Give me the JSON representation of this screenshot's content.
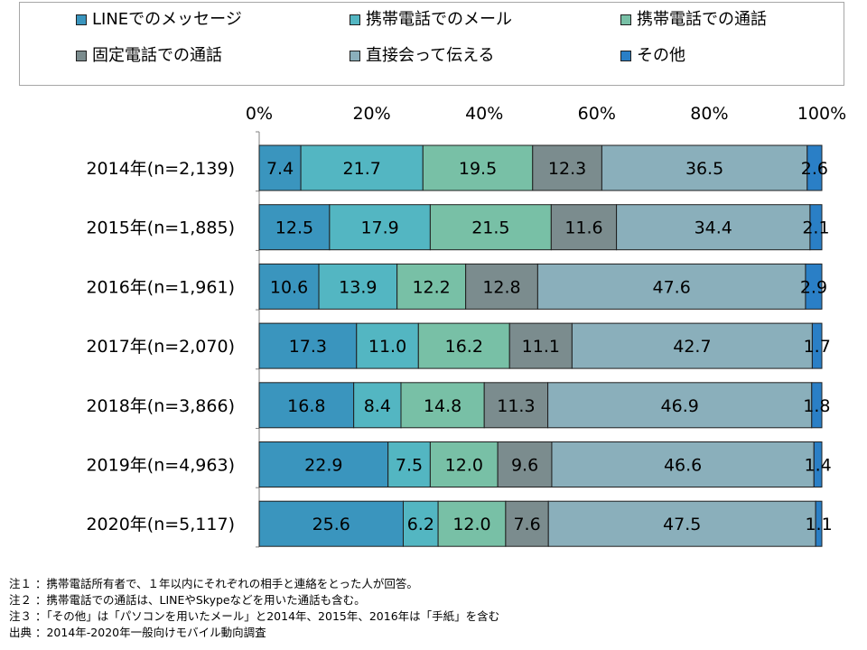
{
  "legend": [
    {
      "label": "LINEでのメッセージ",
      "color": "#3a95be",
      "icon": "square-swatch"
    },
    {
      "label": "携帯電話でのメール",
      "color": "#53b6c2",
      "icon": "square-swatch"
    },
    {
      "label": "携帯電話での通話",
      "color": "#78c0a6",
      "icon": "square-swatch"
    },
    {
      "label": "固定電話での通話",
      "color": "#7b8c8e",
      "icon": "square-swatch"
    },
    {
      "label": "直接会って伝える",
      "color": "#8aafbb",
      "icon": "square-swatch"
    },
    {
      "label": "その他",
      "color": "#2a7fc6",
      "icon": "square-swatch"
    }
  ],
  "chart_data": {
    "type": "bar",
    "orientation": "horizontal",
    "stacked": true,
    "percent": true,
    "categories": [
      "2014年(n=2,139)",
      "2015年(n=1,885)",
      "2016年(n=1,961)",
      "2017年(n=2,070)",
      "2018年(n=3,866)",
      "2019年(n=4,963)",
      "2020年(n=5,117)"
    ],
    "x_ticks": [
      "0%",
      "20%",
      "40%",
      "60%",
      "80%",
      "100%"
    ],
    "xlim": [
      0,
      100
    ],
    "axis_position": "top",
    "legend_position": "top",
    "grid": false,
    "series": [
      {
        "name": "LINEでのメッセージ",
        "color": "#3a95be",
        "values": [
          7.4,
          12.5,
          10.6,
          17.3,
          16.8,
          22.9,
          25.6
        ]
      },
      {
        "name": "携帯電話でのメール",
        "color": "#53b6c2",
        "values": [
          21.7,
          17.9,
          13.9,
          11.0,
          8.4,
          7.5,
          6.2
        ]
      },
      {
        "name": "携帯電話での通話",
        "color": "#78c0a6",
        "values": [
          19.5,
          21.5,
          12.2,
          16.2,
          14.8,
          12.0,
          12.0
        ]
      },
      {
        "name": "固定電話での通話",
        "color": "#7b8c8e",
        "values": [
          12.3,
          11.6,
          12.8,
          11.1,
          11.3,
          9.6,
          7.6
        ]
      },
      {
        "name": "直接会って伝える",
        "color": "#8aafbb",
        "values": [
          36.5,
          34.4,
          47.6,
          42.7,
          46.9,
          46.6,
          47.5
        ]
      },
      {
        "name": "その他",
        "color": "#2a7fc6",
        "values": [
          2.6,
          2.1,
          2.9,
          1.7,
          1.8,
          1.4,
          1.1
        ]
      }
    ]
  },
  "notes": [
    "注１ ：携帯電話所有者で、１年以内にそれぞれの相手と連絡をとった人が回答。",
    "注２ ：携帯電話での通話は、LINEやSkypeなどを用いた通話も含む。",
    "注３ ：「その他」は「パソコンを用いたメール」と2014年、2015年、2016年は「手紙」を含む",
    "出典 ：2014年-2020年一般向けモバイル動向調査"
  ]
}
